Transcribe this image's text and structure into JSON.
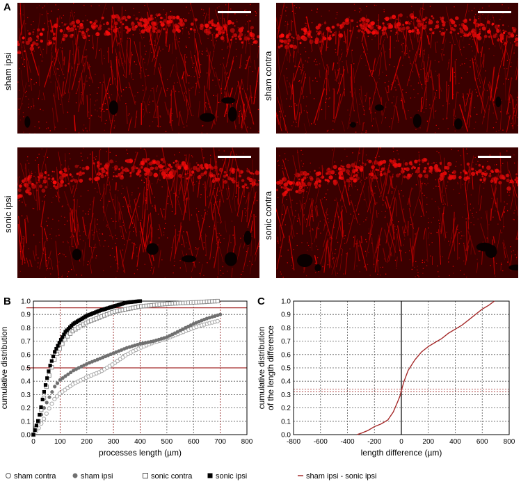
{
  "panels": {
    "A": "A",
    "B": "B",
    "C": "C"
  },
  "images": [
    {
      "label": "sham ipsi",
      "seed": 11
    },
    {
      "label": "sham contra",
      "seed": 23
    },
    {
      "label": "sonic ipsi",
      "seed": 37
    },
    {
      "label": "sonic contra",
      "seed": 53
    }
  ],
  "chart_data": [
    {
      "type": "scatter",
      "title": "",
      "xlabel": "processes length (µm)",
      "ylabel": "cumulative distribution",
      "xlim": [
        0,
        800
      ],
      "ylim": [
        0,
        1.0
      ],
      "xticks": [
        "0",
        "100",
        "200",
        "300",
        "400",
        "500",
        "600",
        "700",
        "800"
      ],
      "yticks": [
        "0.0",
        "0.1",
        "0.2",
        "0.3",
        "0.4",
        "0.5",
        "0.6",
        "0.7",
        "0.8",
        "0.9",
        "1.0"
      ],
      "grid": true,
      "reference_lines": {
        "horizontal": [
          0.5,
          0.95
        ],
        "vertical": [
          100,
          300,
          400,
          700
        ]
      },
      "series": [
        {
          "name": "sham  contra",
          "marker": "open-circle",
          "color": "#a6a6a6",
          "points": [
            [
              0,
              0
            ],
            [
              20,
              0.05
            ],
            [
              40,
              0.12
            ],
            [
              60,
              0.2
            ],
            [
              80,
              0.27
            ],
            [
              100,
              0.31
            ],
            [
              150,
              0.38
            ],
            [
              200,
              0.43
            ],
            [
              250,
              0.47
            ],
            [
              300,
              0.53
            ],
            [
              350,
              0.6
            ],
            [
              400,
              0.65
            ],
            [
              450,
              0.69
            ],
            [
              500,
              0.72
            ],
            [
              550,
              0.76
            ],
            [
              600,
              0.8
            ],
            [
              650,
              0.83
            ],
            [
              690,
              0.85
            ]
          ]
        },
        {
          "name": "sham  ipsi",
          "marker": "filled-circle",
          "color": "#707070",
          "points": [
            [
              0,
              0
            ],
            [
              20,
              0.1
            ],
            [
              40,
              0.2
            ],
            [
              60,
              0.28
            ],
            [
              80,
              0.36
            ],
            [
              100,
              0.41
            ],
            [
              150,
              0.48
            ],
            [
              200,
              0.53
            ],
            [
              250,
              0.57
            ],
            [
              300,
              0.61
            ],
            [
              350,
              0.65
            ],
            [
              400,
              0.68
            ],
            [
              450,
              0.7
            ],
            [
              500,
              0.73
            ],
            [
              550,
              0.78
            ],
            [
              600,
              0.83
            ],
            [
              650,
              0.87
            ],
            [
              700,
              0.9
            ]
          ]
        },
        {
          "name": "sonic  contra",
          "marker": "open-square",
          "color": "#8c8c8c",
          "points": [
            [
              0,
              0
            ],
            [
              20,
              0.1
            ],
            [
              40,
              0.28
            ],
            [
              60,
              0.45
            ],
            [
              80,
              0.57
            ],
            [
              100,
              0.65
            ],
            [
              120,
              0.72
            ],
            [
              150,
              0.78
            ],
            [
              200,
              0.84
            ],
            [
              250,
              0.88
            ],
            [
              300,
              0.92
            ],
            [
              350,
              0.94
            ],
            [
              400,
              0.96
            ],
            [
              450,
              0.97
            ],
            [
              500,
              0.98
            ],
            [
              600,
              0.99
            ],
            [
              690,
              1.0
            ]
          ]
        },
        {
          "name": "sonic ipsi",
          "marker": "filled-square",
          "color": "#000000",
          "points": [
            [
              0,
              0
            ],
            [
              20,
              0.12
            ],
            [
              40,
              0.32
            ],
            [
              60,
              0.5
            ],
            [
              80,
              0.62
            ],
            [
              100,
              0.7
            ],
            [
              120,
              0.77
            ],
            [
              150,
              0.83
            ],
            [
              200,
              0.89
            ],
            [
              250,
              0.93
            ],
            [
              300,
              0.96
            ],
            [
              350,
              0.99
            ],
            [
              400,
              1.0
            ]
          ]
        }
      ],
      "legend": {
        "placement": "bottom",
        "entries": [
          "sham  contra",
          "sham  ipsi",
          "sonic  contra",
          "sonic ipsi"
        ]
      }
    },
    {
      "type": "line",
      "title": "",
      "xlabel": "length difference (µm)",
      "ylabel": "cumulative distribution\nof the length difference",
      "xlim": [
        -800,
        800
      ],
      "ylim": [
        0,
        1.0
      ],
      "xticks": [
        "-800",
        "-600",
        "-400",
        "-200",
        "0",
        "200",
        "400",
        "600",
        "800"
      ],
      "yticks": [
        "0.0",
        "0.1",
        "0.2",
        "0.3",
        "0.4",
        "0.5",
        "0.6",
        "0.7",
        "0.8",
        "0.9",
        "1.0"
      ],
      "grid": true,
      "reference_lines": {
        "horizontal": [
          0.32,
          0.34
        ],
        "vertical": [
          0
        ]
      },
      "series": [
        {
          "name": "sham ipsi - sonic ipsi",
          "color": "#a52a2a",
          "x": [
            -330,
            -300,
            -250,
            -200,
            -150,
            -100,
            -60,
            -30,
            -10,
            0,
            20,
            50,
            100,
            150,
            200,
            250,
            300,
            350,
            400,
            450,
            500,
            550,
            600,
            650,
            690
          ],
          "y": [
            0,
            0.01,
            0.03,
            0.06,
            0.08,
            0.11,
            0.17,
            0.24,
            0.29,
            0.33,
            0.4,
            0.48,
            0.56,
            0.62,
            0.66,
            0.69,
            0.72,
            0.76,
            0.79,
            0.82,
            0.86,
            0.9,
            0.94,
            0.97,
            1.0
          ]
        }
      ],
      "legend": {
        "placement": "bottom",
        "entries": [
          "sham ipsi - sonic ipsi"
        ]
      }
    }
  ]
}
